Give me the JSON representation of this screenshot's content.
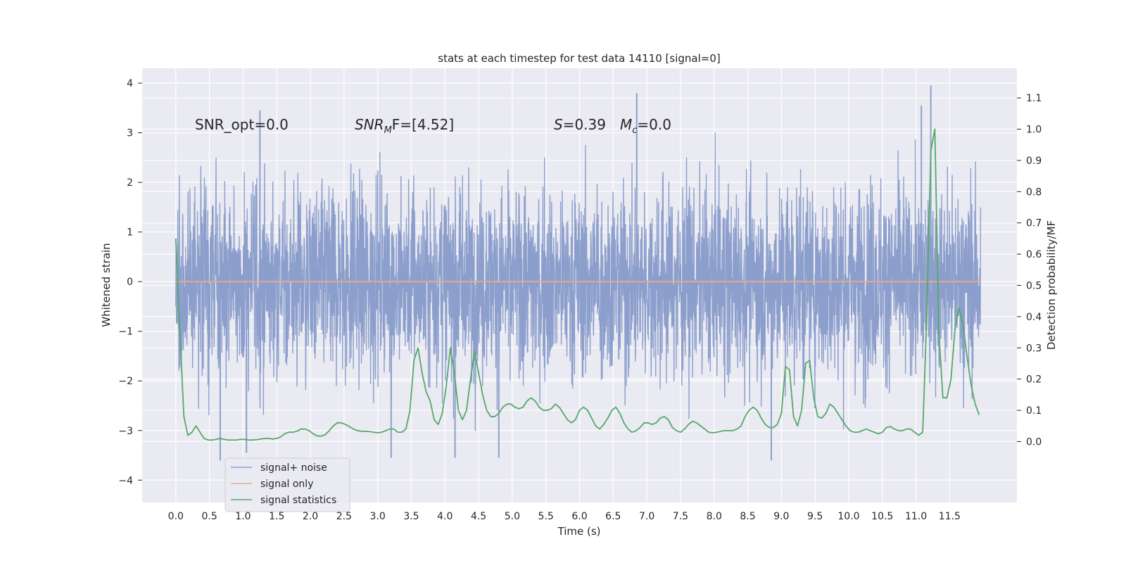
{
  "chart_data": {
    "type": "line",
    "title": "stats at each timestep for test data 14110 [signal=0]",
    "xlabel": "Time (s)",
    "ylabel_left": "Whitened strain",
    "ylabel_right": "Detection probability/MF",
    "xlim": [
      -0.5,
      12.5
    ],
    "ylim_left": [
      -4.45,
      4.3
    ],
    "ylim_right": [
      -0.195,
      1.195
    ],
    "x_ticks": [
      0.0,
      0.5,
      1.0,
      1.5,
      2.0,
      2.5,
      3.0,
      3.5,
      4.0,
      4.5,
      5.0,
      5.5,
      6.0,
      6.5,
      7.0,
      7.5,
      8.0,
      8.5,
      9.0,
      9.5,
      10.0,
      10.5,
      11.0,
      11.5
    ],
    "x_tick_labels": [
      "0.0",
      "0.5",
      "1.0",
      "1.5",
      "2.0",
      "2.5",
      "3.0",
      "3.5",
      "4.0",
      "4.5",
      "5.0",
      "5.5",
      "6.0",
      "6.5",
      "7.0",
      "7.5",
      "8.0",
      "8.5",
      "9.0",
      "9.5",
      "10.0",
      "10.5",
      "11.0",
      "11.5"
    ],
    "y_left_ticks": [
      -4,
      -3,
      -2,
      -1,
      0,
      1,
      2,
      3,
      4
    ],
    "y_left_tick_labels": [
      "−4",
      "−3",
      "−2",
      "−1",
      "0",
      "1",
      "2",
      "3",
      "4"
    ],
    "y_right_ticks": [
      0.0,
      0.1,
      0.2,
      0.3,
      0.4,
      0.5,
      0.6,
      0.7,
      0.8,
      0.9,
      1.0,
      1.1
    ],
    "y_right_tick_labels": [
      "0.0",
      "0.1",
      "0.2",
      "0.3",
      "0.4",
      "0.5",
      "0.6",
      "0.7",
      "0.8",
      "0.9",
      "1.0",
      "1.1"
    ],
    "annotations": {
      "snr_opt": "SNR_opt=0.0",
      "snr_mf_sym": "SNR",
      "snr_mf_sub": "M",
      "snr_mf_rest": "F=[4.52]",
      "s_sym": "S",
      "s_rest": "=0.39",
      "mc_sym": "M",
      "mc_sub": "c",
      "mc_rest": "=0.0"
    },
    "legend": [
      {
        "label": "signal+ noise",
        "color": "#8c9fcc"
      },
      {
        "label": "signal only",
        "color": "#e4a98f"
      },
      {
        "label": "signal statistics",
        "color": "#55a868"
      }
    ],
    "series": [
      {
        "name": "signal+ noise",
        "axis": "left",
        "color": "#8c9fcc",
        "x_range": [
          0.0,
          11.96
        ],
        "noise_std": 0.95,
        "peak_spikes": [
          {
            "x": 0.66,
            "y": -3.6
          },
          {
            "x": 1.05,
            "y": -3.45
          },
          {
            "x": 1.25,
            "y": 3.45
          },
          {
            "x": 3.2,
            "y": -3.55
          },
          {
            "x": 4.15,
            "y": -3.55
          },
          {
            "x": 4.8,
            "y": -3.55
          },
          {
            "x": 6.85,
            "y": 3.8
          },
          {
            "x": 8.85,
            "y": -3.6
          },
          {
            "x": 11.08,
            "y": 3.55
          },
          {
            "x": 11.22,
            "y": 3.95
          }
        ]
      },
      {
        "name": "signal only",
        "axis": "left",
        "color": "#e4a98f",
        "x": [
          0.0,
          11.96
        ],
        "y": [
          0.0,
          0.0
        ]
      },
      {
        "name": "signal statistics",
        "axis": "right",
        "color": "#55a868",
        "x": [
          0.0,
          0.06,
          0.12,
          0.18,
          0.24,
          0.3,
          0.36,
          0.42,
          0.48,
          0.54,
          0.6,
          0.66,
          0.72,
          0.78,
          0.84,
          0.9,
          0.96,
          1.02,
          1.08,
          1.14,
          1.2,
          1.26,
          1.32,
          1.38,
          1.44,
          1.5,
          1.56,
          1.62,
          1.68,
          1.74,
          1.8,
          1.86,
          1.92,
          1.98,
          2.04,
          2.1,
          2.16,
          2.22,
          2.28,
          2.34,
          2.4,
          2.46,
          2.52,
          2.58,
          2.64,
          2.7,
          2.76,
          2.82,
          2.88,
          2.94,
          3.0,
          3.06,
          3.12,
          3.18,
          3.24,
          3.3,
          3.36,
          3.42,
          3.48,
          3.54,
          3.6,
          3.66,
          3.72,
          3.78,
          3.84,
          3.9,
          3.96,
          4.02,
          4.08,
          4.14,
          4.2,
          4.26,
          4.32,
          4.38,
          4.44,
          4.5,
          4.56,
          4.62,
          4.68,
          4.74,
          4.8,
          4.86,
          4.92,
          4.98,
          5.04,
          5.1,
          5.16,
          5.22,
          5.28,
          5.34,
          5.4,
          5.46,
          5.52,
          5.58,
          5.64,
          5.7,
          5.76,
          5.82,
          5.88,
          5.94,
          6.0,
          6.06,
          6.12,
          6.18,
          6.24,
          6.3,
          6.36,
          6.42,
          6.48,
          6.54,
          6.6,
          6.66,
          6.72,
          6.78,
          6.84,
          6.9,
          6.96,
          7.02,
          7.08,
          7.14,
          7.2,
          7.26,
          7.32,
          7.38,
          7.44,
          7.5,
          7.56,
          7.62,
          7.68,
          7.74,
          7.8,
          7.86,
          7.92,
          7.98,
          8.04,
          8.1,
          8.16,
          8.22,
          8.28,
          8.34,
          8.4,
          8.46,
          8.52,
          8.58,
          8.64,
          8.7,
          8.76,
          8.82,
          8.88,
          8.94,
          9.0,
          9.06,
          9.12,
          9.18,
          9.24,
          9.3,
          9.36,
          9.42,
          9.48,
          9.54,
          9.6,
          9.66,
          9.72,
          9.78,
          9.84,
          9.9,
          9.96,
          10.02,
          10.08,
          10.14,
          10.2,
          10.26,
          10.32,
          10.38,
          10.44,
          10.5,
          10.56,
          10.62,
          10.68,
          10.74,
          10.8,
          10.86,
          10.92,
          10.98,
          11.04,
          11.1,
          11.16,
          11.22,
          11.28,
          11.34,
          11.4,
          11.46,
          11.52,
          11.58,
          11.64,
          11.7,
          11.76,
          11.82,
          11.88,
          11.94
        ],
        "y": [
          0.65,
          0.35,
          0.08,
          0.02,
          0.03,
          0.05,
          0.03,
          0.01,
          0.005,
          0.005,
          0.007,
          0.01,
          0.007,
          0.005,
          0.005,
          0.005,
          0.007,
          0.007,
          0.005,
          0.005,
          0.006,
          0.008,
          0.01,
          0.01,
          0.008,
          0.01,
          0.015,
          0.025,
          0.03,
          0.03,
          0.033,
          0.04,
          0.04,
          0.035,
          0.025,
          0.018,
          0.017,
          0.022,
          0.035,
          0.05,
          0.06,
          0.06,
          0.055,
          0.048,
          0.04,
          0.035,
          0.033,
          0.033,
          0.032,
          0.03,
          0.028,
          0.03,
          0.035,
          0.04,
          0.04,
          0.03,
          0.03,
          0.04,
          0.1,
          0.26,
          0.3,
          0.22,
          0.16,
          0.13,
          0.07,
          0.055,
          0.09,
          0.18,
          0.3,
          0.22,
          0.1,
          0.07,
          0.1,
          0.2,
          0.29,
          0.22,
          0.15,
          0.1,
          0.08,
          0.08,
          0.09,
          0.11,
          0.12,
          0.12,
          0.11,
          0.105,
          0.11,
          0.13,
          0.14,
          0.13,
          0.11,
          0.1,
          0.1,
          0.105,
          0.12,
          0.11,
          0.09,
          0.07,
          0.06,
          0.07,
          0.1,
          0.11,
          0.1,
          0.075,
          0.05,
          0.04,
          0.055,
          0.075,
          0.1,
          0.11,
          0.09,
          0.06,
          0.04,
          0.03,
          0.035,
          0.045,
          0.06,
          0.06,
          0.055,
          0.06,
          0.075,
          0.08,
          0.07,
          0.045,
          0.035,
          0.03,
          0.04,
          0.055,
          0.065,
          0.06,
          0.05,
          0.04,
          0.03,
          0.028,
          0.03,
          0.033,
          0.035,
          0.035,
          0.035,
          0.04,
          0.05,
          0.08,
          0.1,
          0.11,
          0.1,
          0.075,
          0.055,
          0.045,
          0.045,
          0.055,
          0.09,
          0.24,
          0.23,
          0.08,
          0.05,
          0.1,
          0.25,
          0.26,
          0.14,
          0.08,
          0.075,
          0.09,
          0.12,
          0.11,
          0.09,
          0.07,
          0.05,
          0.035,
          0.03,
          0.03,
          0.035,
          0.04,
          0.035,
          0.03,
          0.025,
          0.03,
          0.045,
          0.048,
          0.04,
          0.035,
          0.035,
          0.04,
          0.04,
          0.03,
          0.02,
          0.03,
          0.4,
          0.93,
          1.0,
          0.35,
          0.14,
          0.14,
          0.2,
          0.36,
          0.43,
          0.37,
          0.27,
          0.18,
          0.12,
          0.085
        ]
      }
    ]
  }
}
